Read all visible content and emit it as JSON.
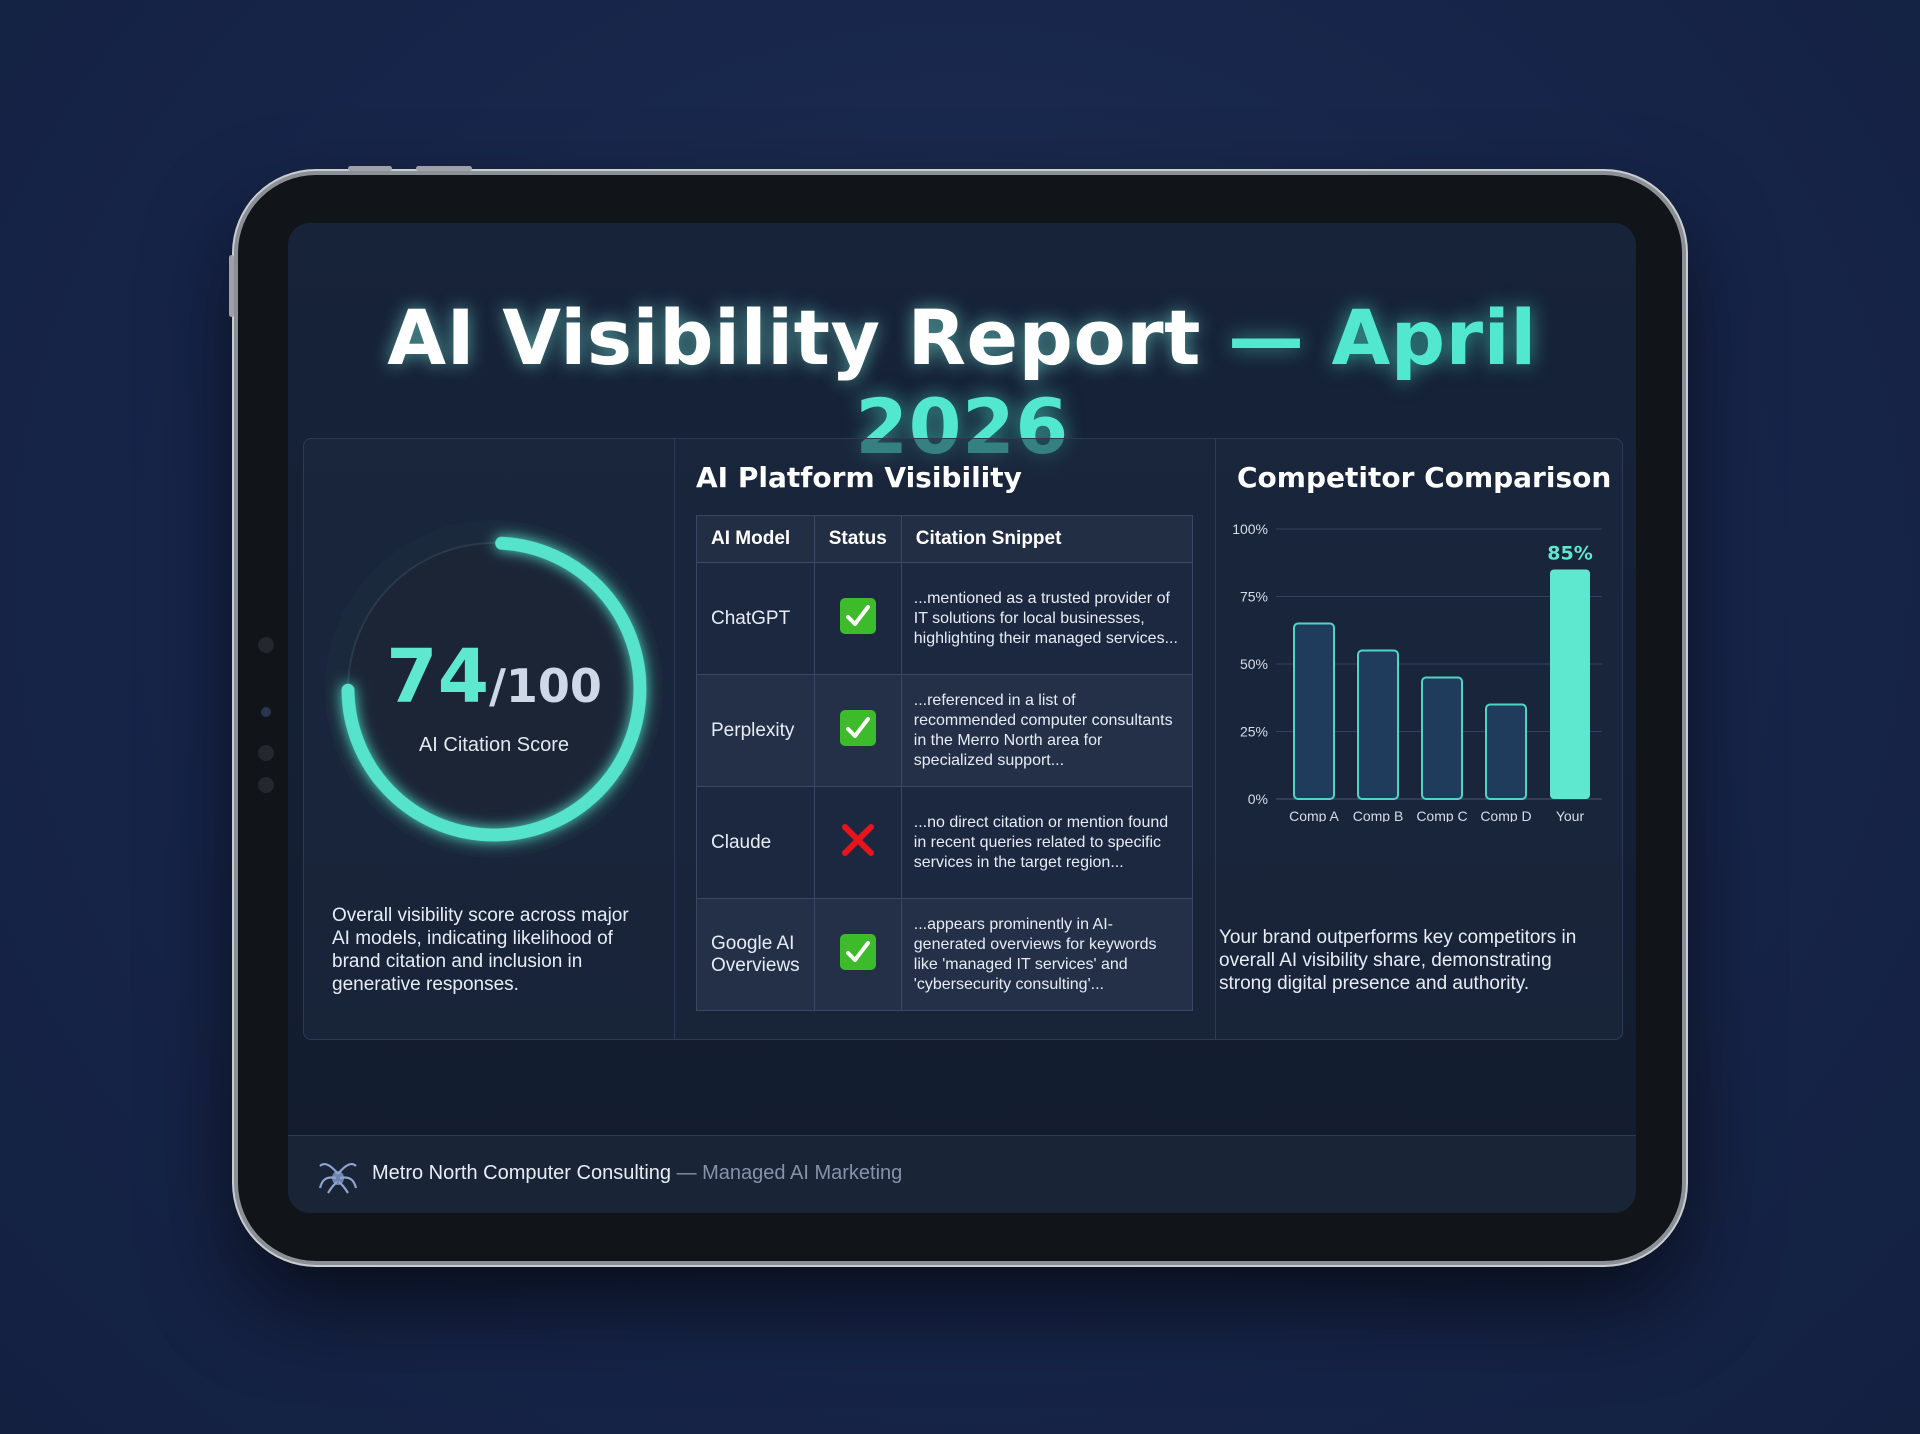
{
  "report": {
    "title_main": "AI Visibility Report",
    "title_dash": "—",
    "title_period": "April 2026"
  },
  "score": {
    "value": "74",
    "max_text": "/100",
    "label": "AI Citation Score",
    "fraction": 0.74,
    "description": "Overall visibility score across major AI models, indicating likelihood of brand citation and inclusion in generative responses."
  },
  "platform": {
    "heading": "AI Platform Visibility",
    "columns": [
      "AI Model",
      "Status",
      "Citation Snippet"
    ],
    "rows": [
      {
        "model": "ChatGPT",
        "status": "check-icon",
        "snippet": "...mentioned as a trusted provider of IT solutions for local businesses, highlighting their managed services..."
      },
      {
        "model": "Perplexity",
        "status": "check-icon",
        "snippet": "...referenced in a list of recommended computer consultants in the Merro North area for specialized support..."
      },
      {
        "model": "Claude",
        "status": "cross-icon",
        "snippet": "...no direct citation or mention found in recent queries related to specific services in the target region..."
      },
      {
        "model": "Google AI Overviews",
        "status": "check-icon",
        "snippet": "...appears prominently in AI-generated overviews for keywords like 'managed IT services' and 'cybersecurity consulting'..."
      }
    ]
  },
  "competitors": {
    "heading": "Competitor Comparison",
    "description": "Your brand outperforms key competitors in overall AI visibility share, demonstrating strong digital presence and authority."
  },
  "chart_data": {
    "type": "bar",
    "categories": [
      "Comp A",
      "Comp B",
      "Comp C",
      "Comp D",
      "Your Client"
    ],
    "values": [
      65,
      55,
      45,
      35,
      85
    ],
    "value_labels": [
      "",
      "",
      "",
      "",
      "85%"
    ],
    "yticks": [
      "0%",
      "25%",
      "50%",
      "75%",
      "100%"
    ],
    "ylim": [
      0,
      100
    ],
    "grid": true,
    "title": "",
    "xlabel": "",
    "ylabel": "",
    "colors": {
      "competitor": "#1f3c5c",
      "competitor_edge": "#4fd6c2",
      "client": "#5ee8d0"
    }
  },
  "footer": {
    "company": "Metro North Computer Consulting",
    "separator": "—",
    "tagline": "Managed AI Marketing",
    "logo_icon": "spider-logo-icon"
  },
  "colors": {
    "accent": "#52e8cf",
    "background": "#17254a",
    "screen": "#141f33"
  }
}
